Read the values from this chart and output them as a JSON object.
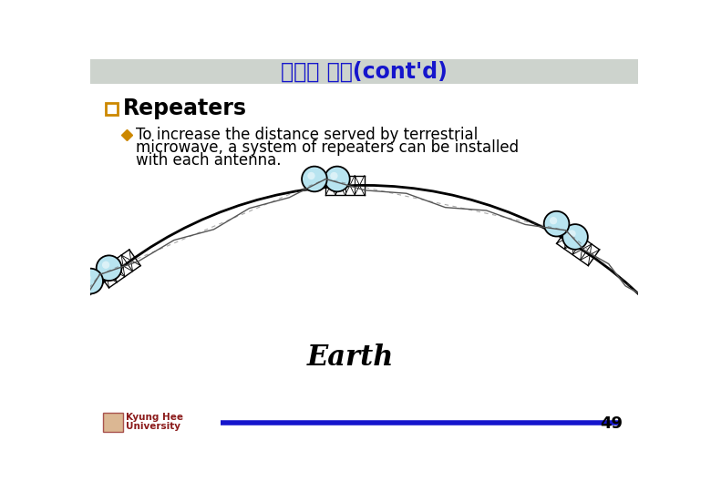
{
  "title": "비유도 매체(cont'd)",
  "title_color": "#1515CC",
  "title_bg_color": "#cdd3cd",
  "section_title": "Repeaters",
  "section_title_color": "#000000",
  "section_bullet_color": "#CC8800",
  "bullet_color": "#CC8800",
  "bullet_text_line1": "To increase the distance served by terrestrial",
  "bullet_text_line2": "microwave, a system of repeaters can be installed",
  "bullet_text_line3": "with each antenna.",
  "text_color": "#000000",
  "earth_label": "Earth",
  "earth_label_color": "#000000",
  "footer_line_color": "#1515CC",
  "footer_text_line1": "Kyung Hee",
  "footer_text_line2": "University",
  "footer_text_color": "#8B1A1A",
  "page_number": "49",
  "page_number_color": "#000000",
  "bg_color": "#ffffff",
  "earth_fill_color": "#ffffff",
  "earth_arc_color": "#000000",
  "tower_color": "#000000",
  "dish_fill": "#b8e4f0",
  "dish_edge": "#000000",
  "signal_line_color": "#555555"
}
